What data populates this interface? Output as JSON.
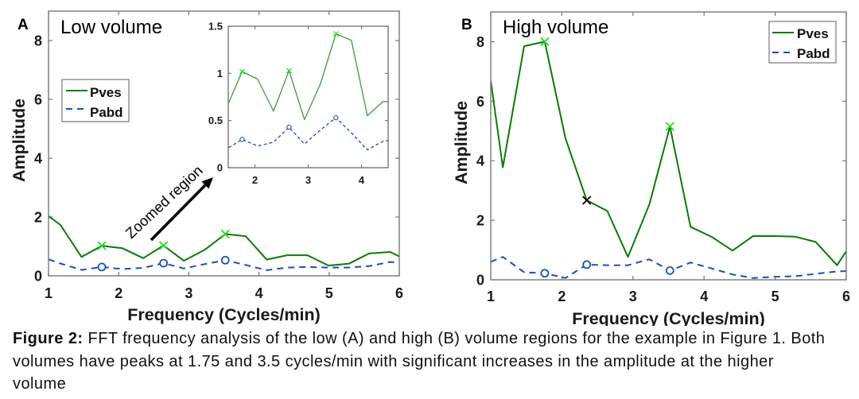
{
  "chart_data": [
    {
      "id": "A",
      "panel_label": "A",
      "title": "Low volume",
      "type": "line",
      "xlabel": "Frequency (Cycles/min)",
      "ylabel": "Amplitude",
      "xlim": [
        1,
        6
      ],
      "ylim": [
        0,
        9
      ],
      "xticks": [
        1,
        2,
        3,
        4,
        5,
        6
      ],
      "yticks": [
        0,
        2,
        4,
        6,
        8
      ],
      "grid": false,
      "legend": {
        "position": "left",
        "entries": [
          "Pves",
          "Pabd"
        ]
      },
      "x": [
        1,
        1.17,
        1.47,
        1.76,
        2.05,
        2.35,
        2.64,
        2.93,
        3.23,
        3.52,
        3.81,
        4.11,
        4.4,
        4.69,
        4.99,
        5.28,
        5.57,
        5.87,
        6
      ],
      "series": [
        {
          "name": "Pves",
          "color": "#0b7a0b",
          "line_style": "solid",
          "marker": "x",
          "marker_color": "#22dd22",
          "values": [
            2.03,
            1.73,
            0.64,
            1.02,
            0.94,
            0.6,
            1.03,
            0.51,
            0.89,
            1.42,
            1.35,
            0.55,
            0.7,
            0.7,
            0.35,
            0.41,
            0.76,
            0.81,
            0.66
          ],
          "marked_x": [
            1.76,
            2.64,
            3.52
          ]
        },
        {
          "name": "Pabd",
          "color": "#1a4fb5",
          "line_style": "dashed",
          "marker": "o",
          "marker_color": "#1a4fb5",
          "values": [
            0.56,
            0.42,
            0.2,
            0.3,
            0.23,
            0.27,
            0.43,
            0.25,
            0.4,
            0.53,
            0.37,
            0.19,
            0.28,
            0.3,
            0.28,
            0.28,
            0.33,
            0.47,
            0.45
          ],
          "marked_x": [
            1.76,
            2.64,
            3.52
          ]
        }
      ]
    },
    {
      "id": "A-inset",
      "title": "",
      "type": "line",
      "data_from": "A",
      "xlim": [
        1.5,
        4.5
      ],
      "ylim": [
        0,
        1.5
      ],
      "xticks": [
        2,
        3,
        4
      ],
      "yticks": [
        0,
        0.5,
        1,
        1.5
      ],
      "grid": false
    },
    {
      "id": "B",
      "panel_label": "B",
      "title": "High volume",
      "type": "line",
      "xlabel": "Frequency (Cycles/min)",
      "ylabel": "Amplitude",
      "xlim": [
        1,
        6
      ],
      "ylim": [
        0,
        9
      ],
      "xticks": [
        1,
        2,
        3,
        4,
        5,
        6
      ],
      "yticks": [
        0,
        2,
        4,
        6,
        8
      ],
      "grid": false,
      "legend": {
        "position": "top-right",
        "entries": [
          "Pves",
          "Pabd"
        ]
      },
      "x": [
        1,
        1.17,
        1.47,
        1.76,
        2.05,
        2.35,
        2.64,
        2.93,
        3.23,
        3.52,
        3.81,
        4.11,
        4.4,
        4.69,
        4.99,
        5.28,
        5.57,
        5.87,
        6
      ],
      "series": [
        {
          "name": "Pves",
          "color": "#0b7a0b",
          "line_style": "solid",
          "marker": "x",
          "marker_color": "#22dd22",
          "values": [
            6.69,
            3.78,
            7.85,
            8.0,
            4.76,
            2.67,
            2.31,
            0.77,
            2.53,
            5.15,
            1.78,
            1.44,
            0.98,
            1.47,
            1.47,
            1.45,
            1.27,
            0.49,
            0.96
          ],
          "marked_x": [
            1.76,
            3.52
          ],
          "extra_markers": [
            {
              "x": 2.35,
              "marker": "x",
              "color": "#000000"
            }
          ]
        },
        {
          "name": "Pabd",
          "color": "#1a4fb5",
          "line_style": "dashed",
          "marker": "o",
          "marker_color": "#1a4fb5",
          "values": [
            0.6,
            0.77,
            0.25,
            0.22,
            0.06,
            0.51,
            0.49,
            0.49,
            0.69,
            0.31,
            0.58,
            0.38,
            0.18,
            0.06,
            0.1,
            0.12,
            0.2,
            0.28,
            0.29
          ],
          "marked_x": [
            1.76,
            2.35,
            3.52
          ]
        }
      ]
    }
  ],
  "annotation": {
    "label": "Zoomed region",
    "icon": "arrow-up-right-icon"
  },
  "caption": {
    "label": "Figure 2:",
    "lines": [
      " FFT frequency analysis of the low (A) and high (B) volume regions for the example in Figure 1. Both",
      "volumes have peaks at 1.75 and 3.5 cycles/min with significant increases in the amplitude at the higher",
      "volume"
    ]
  }
}
